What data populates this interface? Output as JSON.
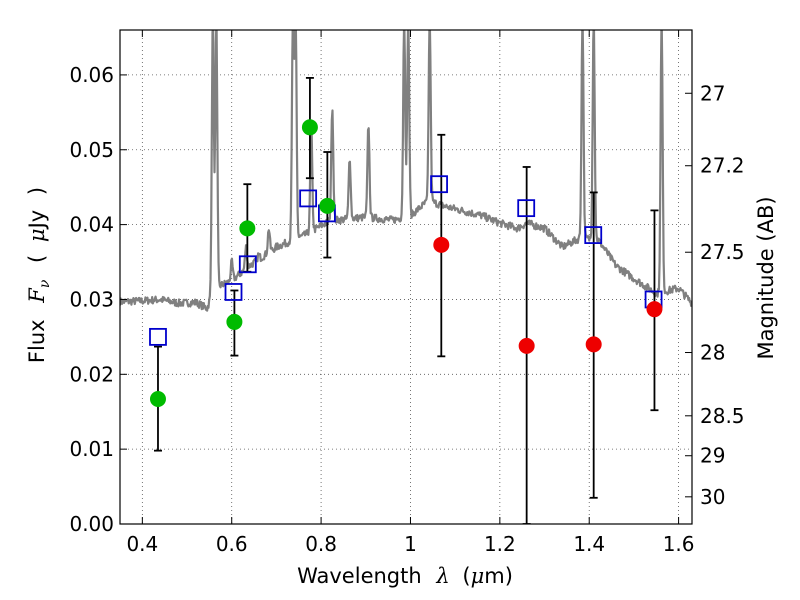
{
  "chart_data": {
    "type": "scatter",
    "title": "",
    "xlabel": {
      "prefix": "Wavelength",
      "symbol": "λ",
      "open": "(",
      "unit_prefix": "μ",
      "unit": "m",
      "close": ")"
    },
    "ylabel": {
      "prefix": "Flux",
      "symbol_main": "F",
      "symbol_sub": "ν",
      "open": "(",
      "unit_prefix": "μ",
      "unit": "Jy",
      "close": ")"
    },
    "y2label": "Magnitude (AB)",
    "xlim": [
      0.35,
      1.63
    ],
    "ylim": [
      0.0,
      0.066
    ],
    "grid": true,
    "x_ticks": [
      {
        "value": 0.4,
        "label": "0.4"
      },
      {
        "value": 0.6,
        "label": "0.6"
      },
      {
        "value": 0.8,
        "label": "0.8"
      },
      {
        "value": 1.0,
        "label": "1"
      },
      {
        "value": 1.2,
        "label": "1.2"
      },
      {
        "value": 1.4,
        "label": "1.4"
      },
      {
        "value": 1.6,
        "label": "1.6"
      }
    ],
    "y_ticks": [
      {
        "value": 0.0,
        "label": "0.00"
      },
      {
        "value": 0.01,
        "label": "0.01"
      },
      {
        "value": 0.02,
        "label": "0.02"
      },
      {
        "value": 0.03,
        "label": "0.03"
      },
      {
        "value": 0.04,
        "label": "0.04"
      },
      {
        "value": 0.05,
        "label": "0.05"
      },
      {
        "value": 0.06,
        "label": "0.06"
      }
    ],
    "y2_ticks": [
      {
        "value": 27,
        "label": "27"
      },
      {
        "value": 27.2,
        "label": "27.2"
      },
      {
        "value": 27.5,
        "label": "27.5"
      },
      {
        "value": 28,
        "label": "28"
      },
      {
        "value": 28.5,
        "label": "28.5"
      },
      {
        "value": 29,
        "label": "29"
      },
      {
        "value": 30,
        "label": "30"
      }
    ],
    "colors": {
      "model": "#808080",
      "model_points": "#0000cc",
      "observed_optical": "#00bb00",
      "observed_nir": "#ee0000",
      "errorbar": "#000000",
      "grid": "#555555"
    },
    "model_spectrum": {
      "continuum": [
        [
          0.35,
          0.0297
        ],
        [
          0.4,
          0.0298
        ],
        [
          0.44,
          0.03
        ],
        [
          0.48,
          0.0295
        ],
        [
          0.52,
          0.0296
        ],
        [
          0.545,
          0.0288
        ],
        [
          0.56,
          0.0315
        ],
        [
          0.6,
          0.0325
        ],
        [
          0.64,
          0.0345
        ],
        [
          0.7,
          0.037
        ],
        [
          0.76,
          0.0385
        ],
        [
          0.82,
          0.0405
        ],
        [
          0.9,
          0.041
        ],
        [
          0.96,
          0.0406
        ],
        [
          1.0,
          0.0412
        ],
        [
          1.04,
          0.0432
        ],
        [
          1.08,
          0.0424
        ],
        [
          1.12,
          0.0418
        ],
        [
          1.16,
          0.0412
        ],
        [
          1.2,
          0.0402
        ],
        [
          1.24,
          0.0395
        ],
        [
          1.26,
          0.0402
        ],
        [
          1.3,
          0.0395
        ],
        [
          1.34,
          0.037
        ],
        [
          1.38,
          0.0382
        ],
        [
          1.42,
          0.038
        ],
        [
          1.46,
          0.0345
        ],
        [
          1.5,
          0.0328
        ],
        [
          1.55,
          0.0308
        ],
        [
          1.6,
          0.0315
        ],
        [
          1.63,
          0.0295
        ]
      ],
      "lines": [
        {
          "x": 0.5577,
          "peak": 0.068
        },
        {
          "x": 0.5655,
          "peak": 0.068
        },
        {
          "x": 0.6,
          "peak": 0.035
        },
        {
          "x": 0.632,
          "peak": 0.037
        },
        {
          "x": 0.66,
          "peak": 0.036
        },
        {
          "x": 0.683,
          "peak": 0.0395
        },
        {
          "x": 0.737,
          "peak": 0.068
        },
        {
          "x": 0.743,
          "peak": 0.068
        },
        {
          "x": 0.778,
          "peak": 0.053
        },
        {
          "x": 0.825,
          "peak": 0.056
        },
        {
          "x": 0.864,
          "peak": 0.049
        },
        {
          "x": 0.906,
          "peak": 0.0535
        },
        {
          "x": 0.986,
          "peak": 0.068
        },
        {
          "x": 0.995,
          "peak": 0.068
        },
        {
          "x": 1.043,
          "peak": 0.068
        },
        {
          "x": 1.385,
          "peak": 0.068
        },
        {
          "x": 1.41,
          "peak": 0.068
        },
        {
          "x": 1.562,
          "peak": 0.068
        }
      ]
    },
    "model_points": [
      {
        "x": 0.435,
        "y": 0.025
      },
      {
        "x": 0.604,
        "y": 0.031
      },
      {
        "x": 0.636,
        "y": 0.0347
      },
      {
        "x": 0.771,
        "y": 0.0435
      },
      {
        "x": 0.813,
        "y": 0.0415
      },
      {
        "x": 1.064,
        "y": 0.0454
      },
      {
        "x": 1.259,
        "y": 0.0422
      },
      {
        "x": 1.409,
        "y": 0.0386
      },
      {
        "x": 1.544,
        "y": 0.03
      }
    ],
    "observed": [
      {
        "x": 0.435,
        "y": 0.0167,
        "yerr_low": 0.0098,
        "yerr_high": 0.0237,
        "band": "optical"
      },
      {
        "x": 0.606,
        "y": 0.027,
        "yerr_low": 0.0225,
        "yerr_high": 0.0312,
        "band": "optical"
      },
      {
        "x": 0.635,
        "y": 0.0395,
        "yerr_low": 0.0337,
        "yerr_high": 0.0454,
        "band": "optical"
      },
      {
        "x": 0.775,
        "y": 0.053,
        "yerr_low": 0.0462,
        "yerr_high": 0.0596,
        "band": "optical"
      },
      {
        "x": 0.814,
        "y": 0.0425,
        "yerr_low": 0.0356,
        "yerr_high": 0.0497,
        "band": "optical"
      },
      {
        "x": 1.069,
        "y": 0.0373,
        "yerr_low": 0.0224,
        "yerr_high": 0.052,
        "band": "nir"
      },
      {
        "x": 1.26,
        "y": 0.0238,
        "yerr_low": 0.0,
        "yerr_high": 0.0477,
        "band": "nir"
      },
      {
        "x": 1.41,
        "y": 0.024,
        "yerr_low": 0.0035,
        "yerr_high": 0.0443,
        "band": "nir"
      },
      {
        "x": 1.546,
        "y": 0.0287,
        "yerr_low": 0.0152,
        "yerr_high": 0.0419,
        "band": "nir"
      }
    ]
  }
}
